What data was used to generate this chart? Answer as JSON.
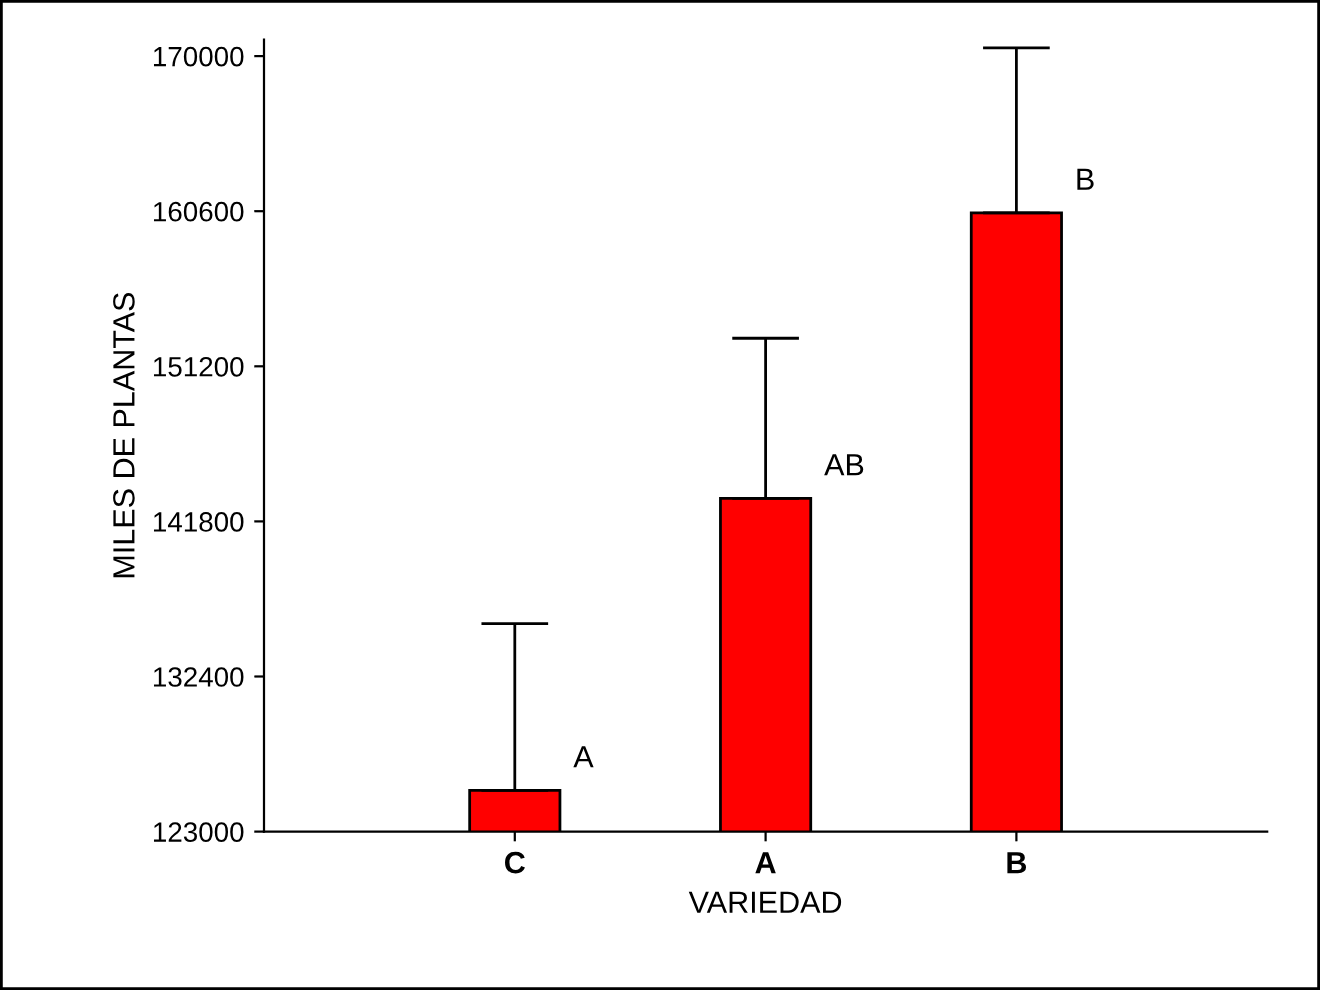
{
  "chart_data": {
    "type": "bar",
    "xlabel": "VARIEDAD",
    "ylabel": "MILES DE PLANTAS",
    "categories": [
      "C",
      "A",
      "B"
    ],
    "values": [
      125500,
      143200,
      160500
    ],
    "errors": [
      [
        125500,
        135600
      ],
      [
        143200,
        152900
      ],
      [
        160500,
        170500
      ]
    ],
    "color": "#ff0000",
    "ylim": [
      123000,
      171000
    ],
    "yticks": [
      123000,
      132400,
      141800,
      151200,
      160600,
      170000
    ],
    "annotations": [
      {
        "text": "A",
        "x": "C",
        "y": 125500
      },
      {
        "text": "AB",
        "x": "A",
        "y": 143200
      },
      {
        "text": "B",
        "x": "B",
        "y": 160500
      }
    ],
    "grid": false,
    "legend": false
  }
}
